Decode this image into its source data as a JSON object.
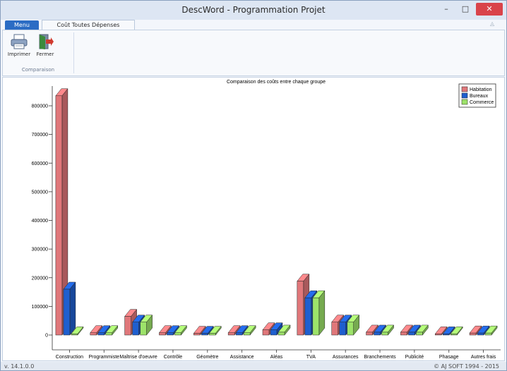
{
  "window": {
    "title": "DescWord - Programmation Projet",
    "controls": {
      "minimize": "–",
      "maximize": "□",
      "close": "✕"
    }
  },
  "tabs": {
    "menu": "Menu",
    "active": "Coût Toutes Dépenses Confondues"
  },
  "ribbon": {
    "print_label": "Imprimer",
    "close_label": "Fermer",
    "group_label": "Comparaison",
    "help_glyph": "◬"
  },
  "status": {
    "version": "v. 14.1.0.0",
    "copyright": "© AJ SOFT 1994 - 2015"
  },
  "colors": {
    "habitation": "#e0777a",
    "bureaux": "#1f5fcf",
    "commerce": "#9de36a"
  },
  "icons": {
    "print": "printer-icon",
    "close": "exit-door-icon"
  },
  "chart_data": {
    "type": "bar",
    "title": "Comparaison des coûts entre chaque groupe",
    "xlabel": "",
    "ylabel": "",
    "ylim": [
      0,
      850000
    ],
    "yticks": [
      0,
      100000,
      200000,
      300000,
      400000,
      500000,
      600000,
      700000,
      800000
    ],
    "legend_position": "top-right",
    "grid": false,
    "categories": [
      "Construction",
      "Programmiste",
      "Maîtrise d'oeuvre",
      "Contrôle",
      "Géomètre",
      "Assistance",
      "Aléas",
      "TVA",
      "Assurances",
      "Branchements",
      "Publicité",
      "Phasage",
      "Autres frais"
    ],
    "series": [
      {
        "name": "Habitation",
        "values": [
          835000,
          8000,
          65000,
          8000,
          6000,
          8000,
          18000,
          188000,
          45000,
          10000,
          10000,
          4000,
          7000
        ]
      },
      {
        "name": "Bureaux",
        "values": [
          160000,
          8000,
          45000,
          8000,
          6000,
          8000,
          18000,
          130000,
          45000,
          10000,
          10000,
          4000,
          7000
        ]
      },
      {
        "name": "Commerce",
        "values": [
          4000,
          8000,
          45000,
          8000,
          6000,
          8000,
          10000,
          130000,
          45000,
          10000,
          10000,
          4000,
          7000
        ]
      }
    ]
  }
}
